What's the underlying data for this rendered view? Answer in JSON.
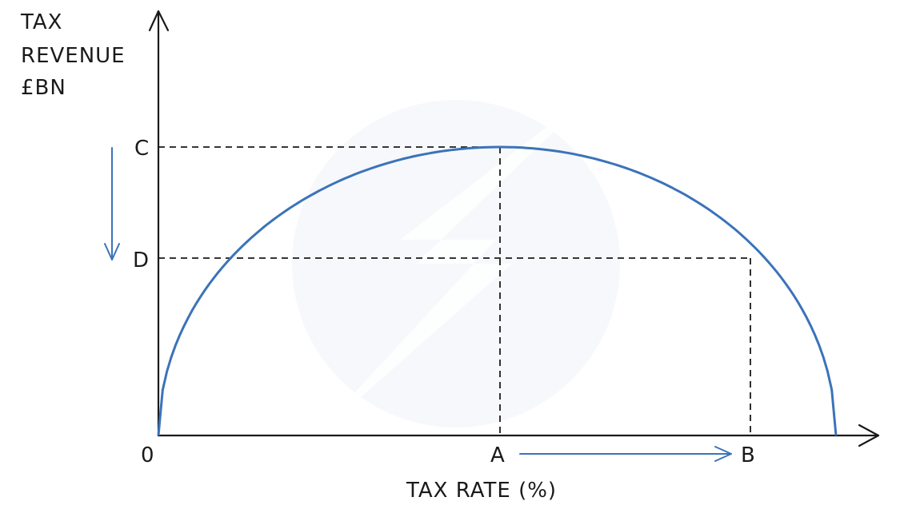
{
  "y_axis_label": [
    "TAX",
    "REVENUE",
    "£BN"
  ],
  "x_axis_label": "TAX RATE (%)",
  "origin_label": "0",
  "point_labels": {
    "A": "A",
    "B": "B",
    "C": "C",
    "D": "D"
  },
  "colors": {
    "curve": "#3b73b9",
    "axes": "#1a1a1a",
    "arrows": "#3b73b9"
  }
}
